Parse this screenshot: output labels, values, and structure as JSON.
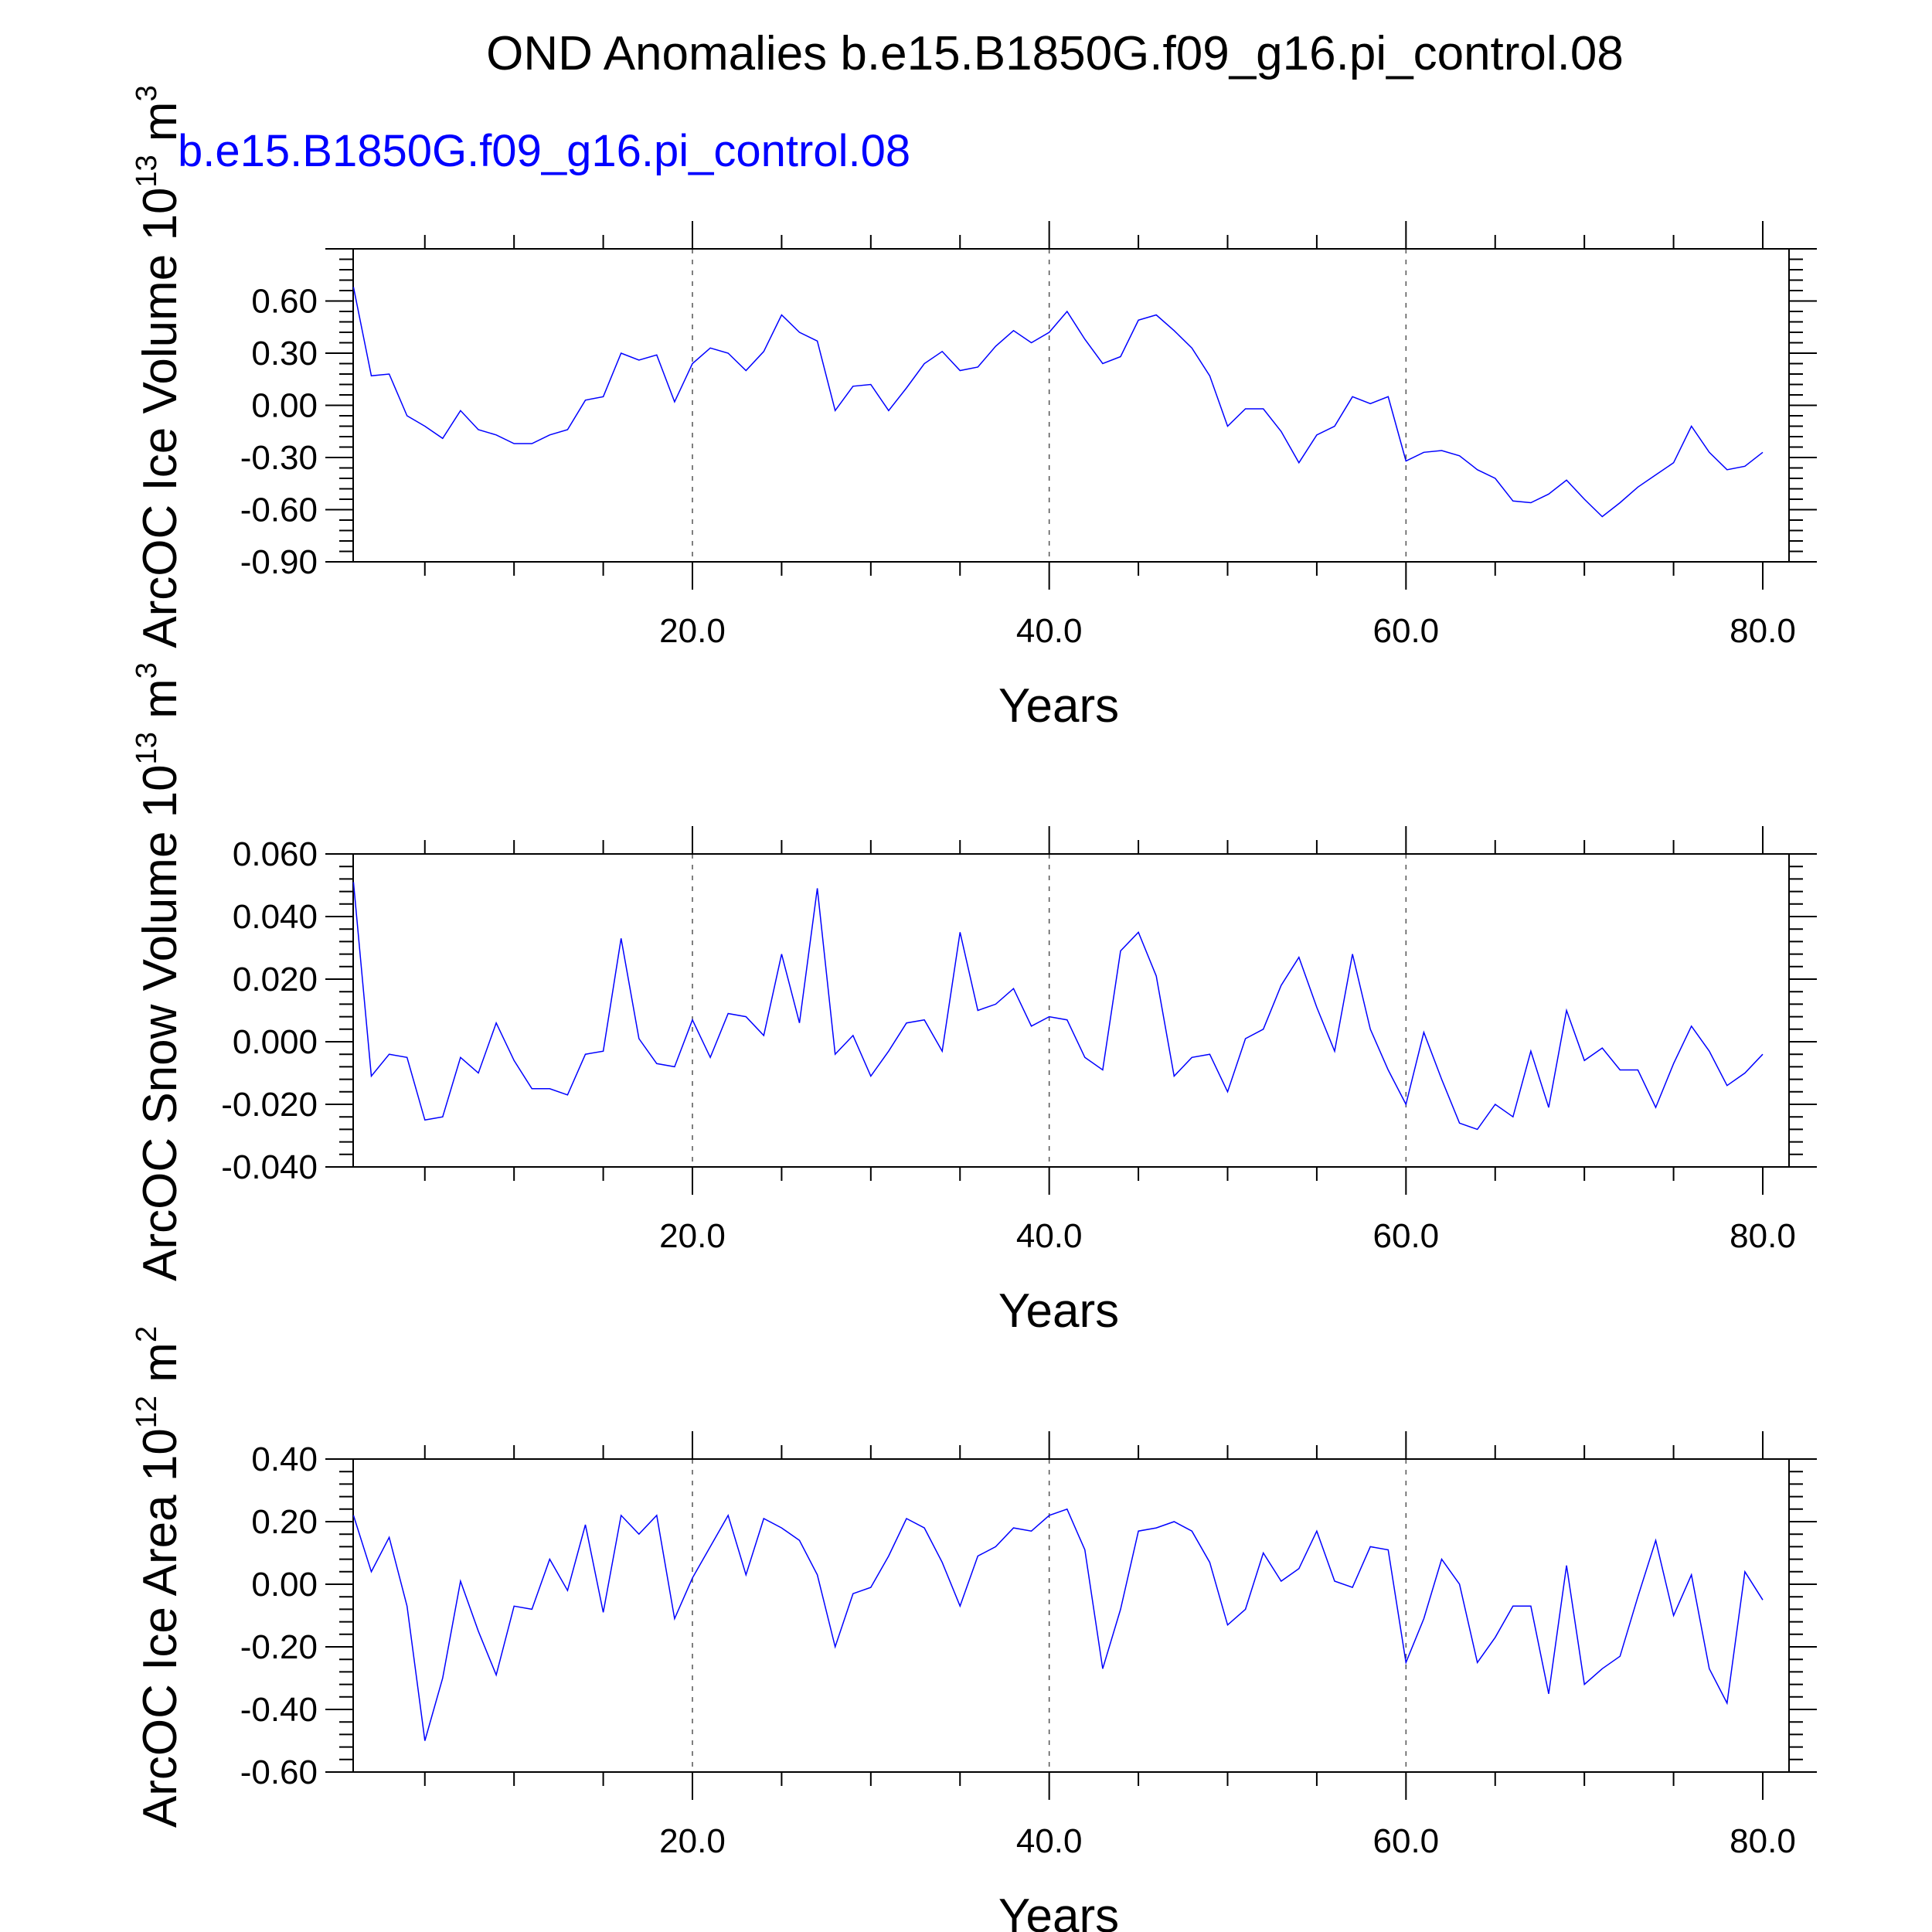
{
  "title": "OND Anomalies b.e15.B1850G.f09_g16.pi_control.08",
  "case_label": "b.e15.B1850G.f09_g16.pi_control.08",
  "chart_data": [
    {
      "type": "line",
      "ylabel": {
        "text": "ArcOC Ice Volume 10",
        "exp": "13",
        "unit": " m",
        "unit_exp": "3"
      },
      "xlabel": "Years",
      "xlim": [
        1,
        80.0
      ],
      "ylim": [
        -0.9,
        0.9
      ],
      "ytick_values": [
        -0.9,
        -0.6,
        -0.3,
        0.0,
        0.3,
        0.6
      ],
      "yticks": [
        "-0.90",
        "-0.60",
        "-0.30",
        "0.00",
        "0.30",
        "0.60"
      ],
      "xtick_values": [
        20,
        40,
        60,
        80
      ],
      "xticks": [
        "20.0",
        "40.0",
        "60.0",
        "80.0"
      ],
      "grid_x": [
        20,
        40,
        60
      ],
      "line_color": "#0000ff",
      "series": [
        {
          "x": [
            1,
            2,
            3,
            4,
            5,
            6,
            7,
            8,
            9,
            10,
            11,
            12,
            13,
            14,
            15,
            16,
            17,
            18,
            19,
            20,
            21,
            22,
            23,
            24,
            25,
            26,
            27,
            28,
            29,
            30,
            31,
            32,
            33,
            34,
            35,
            36,
            37,
            38,
            39,
            40,
            41,
            42,
            43,
            44,
            45,
            46,
            47,
            48,
            49,
            50,
            51,
            52,
            53,
            54,
            55,
            56,
            57,
            58,
            59,
            60,
            61,
            62,
            63,
            64,
            65,
            66,
            67,
            68,
            69,
            70,
            71,
            72,
            73,
            74,
            75,
            76,
            77,
            78,
            79,
            80
          ],
          "values": [
            0.68,
            0.17,
            0.18,
            -0.06,
            -0.12,
            -0.19,
            -0.03,
            -0.14,
            -0.17,
            -0.22,
            -0.22,
            -0.17,
            -0.14,
            0.03,
            0.05,
            0.3,
            0.26,
            0.29,
            0.02,
            0.24,
            0.33,
            0.3,
            0.2,
            0.31,
            0.52,
            0.42,
            0.37,
            -0.03,
            0.11,
            0.12,
            -0.03,
            0.1,
            0.24,
            0.31,
            0.2,
            0.22,
            0.34,
            0.43,
            0.36,
            0.42,
            0.54,
            0.38,
            0.24,
            0.28,
            0.49,
            0.52,
            0.43,
            0.33,
            0.17,
            -0.12,
            -0.02,
            -0.02,
            -0.15,
            -0.33,
            -0.17,
            -0.12,
            0.05,
            0.01,
            0.05,
            -0.32,
            -0.27,
            -0.26,
            -0.29,
            -0.37,
            -0.42,
            -0.55,
            -0.56,
            -0.51,
            -0.43,
            -0.54,
            -0.64,
            -0.56,
            -0.47,
            -0.4,
            -0.33,
            -0.12,
            -0.27,
            -0.37,
            -0.35,
            -0.27
          ]
        }
      ]
    },
    {
      "type": "line",
      "ylabel": {
        "text": "ArcOC Snow Volume 10",
        "exp": "13",
        "unit": " m",
        "unit_exp": "3"
      },
      "xlabel": "Years",
      "xlim": [
        1,
        80.0
      ],
      "ylim": [
        -0.04,
        0.06
      ],
      "ytick_values": [
        -0.04,
        -0.02,
        0.0,
        0.02,
        0.04,
        0.06
      ],
      "yticks": [
        "-0.040",
        "-0.020",
        "0.000",
        "0.020",
        "0.040",
        "0.060"
      ],
      "xtick_values": [
        20,
        40,
        60,
        80
      ],
      "xticks": [
        "20.0",
        "40.0",
        "60.0",
        "80.0"
      ],
      "grid_x": [
        20,
        40,
        60
      ],
      "line_color": "#0000ff",
      "series": [
        {
          "x": [
            1,
            2,
            3,
            4,
            5,
            6,
            7,
            8,
            9,
            10,
            11,
            12,
            13,
            14,
            15,
            16,
            17,
            18,
            19,
            20,
            21,
            22,
            23,
            24,
            25,
            26,
            27,
            28,
            29,
            30,
            31,
            32,
            33,
            34,
            35,
            36,
            37,
            38,
            39,
            40,
            41,
            42,
            43,
            44,
            45,
            46,
            47,
            48,
            49,
            50,
            51,
            52,
            53,
            54,
            55,
            56,
            57,
            58,
            59,
            60,
            61,
            62,
            63,
            64,
            65,
            66,
            67,
            68,
            69,
            70,
            71,
            72,
            73,
            74,
            75,
            76,
            77,
            78,
            79,
            80
          ],
          "values": [
            0.051,
            -0.011,
            -0.004,
            -0.005,
            -0.025,
            -0.024,
            -0.005,
            -0.01,
            0.006,
            -0.006,
            -0.015,
            -0.015,
            -0.017,
            -0.004,
            -0.003,
            0.033,
            0.001,
            -0.007,
            -0.008,
            0.007,
            -0.005,
            0.009,
            0.008,
            0.002,
            0.028,
            0.006,
            0.049,
            -0.004,
            0.002,
            -0.011,
            -0.003,
            0.006,
            0.007,
            -0.003,
            0.035,
            0.01,
            0.012,
            0.017,
            0.005,
            0.008,
            0.007,
            -0.005,
            -0.009,
            0.029,
            0.035,
            0.021,
            -0.011,
            -0.005,
            -0.004,
            -0.016,
            0.001,
            0.004,
            0.018,
            0.027,
            0.011,
            -0.003,
            0.028,
            0.004,
            -0.009,
            -0.02,
            0.003,
            -0.012,
            -0.026,
            -0.028,
            -0.02,
            -0.024,
            -0.003,
            -0.021,
            0.01,
            -0.006,
            -0.002,
            -0.009,
            -0.009,
            -0.021,
            -0.007,
            0.005,
            -0.003,
            -0.014,
            -0.01,
            -0.004
          ]
        }
      ]
    },
    {
      "type": "line",
      "ylabel": {
        "text": "ArcOC Ice Area 10",
        "exp": "12",
        "unit": " m",
        "unit_exp": "2"
      },
      "xlabel": "Years",
      "xlim": [
        1,
        80.0
      ],
      "ylim": [
        -0.6,
        0.4
      ],
      "ytick_values": [
        -0.6,
        -0.4,
        -0.2,
        0.0,
        0.2,
        0.4
      ],
      "yticks": [
        "-0.60",
        "-0.40",
        "-0.20",
        "0.00",
        "0.20",
        "0.40"
      ],
      "xtick_values": [
        20,
        40,
        60,
        80
      ],
      "xticks": [
        "20.0",
        "40.0",
        "60.0",
        "80.0"
      ],
      "grid_x": [
        20,
        40,
        60
      ],
      "line_color": "#0000ff",
      "series": [
        {
          "x": [
            1,
            2,
            3,
            4,
            5,
            6,
            7,
            8,
            9,
            10,
            11,
            12,
            13,
            14,
            15,
            16,
            17,
            18,
            19,
            20,
            21,
            22,
            23,
            24,
            25,
            26,
            27,
            28,
            29,
            30,
            31,
            32,
            33,
            34,
            35,
            36,
            37,
            38,
            39,
            40,
            41,
            42,
            43,
            44,
            45,
            46,
            47,
            48,
            49,
            50,
            51,
            52,
            53,
            54,
            55,
            56,
            57,
            58,
            59,
            60,
            61,
            62,
            63,
            64,
            65,
            66,
            67,
            68,
            69,
            70,
            71,
            72,
            73,
            74,
            75,
            76,
            77,
            78,
            79,
            80
          ],
          "values": [
            0.22,
            0.04,
            0.15,
            -0.07,
            -0.5,
            -0.3,
            0.01,
            -0.15,
            -0.29,
            -0.07,
            -0.08,
            0.08,
            -0.02,
            0.19,
            -0.09,
            0.22,
            0.16,
            0.22,
            -0.11,
            0.02,
            0.12,
            0.22,
            0.03,
            0.21,
            0.18,
            0.14,
            0.03,
            -0.2,
            -0.03,
            -0.01,
            0.09,
            0.21,
            0.18,
            0.07,
            -0.07,
            0.09,
            0.12,
            0.18,
            0.17,
            0.22,
            0.24,
            0.11,
            -0.27,
            -0.08,
            0.17,
            0.18,
            0.2,
            0.17,
            0.07,
            -0.13,
            -0.08,
            0.1,
            0.01,
            0.05,
            0.17,
            0.01,
            -0.01,
            0.12,
            0.11,
            -0.25,
            -0.11,
            0.08,
            0.0,
            -0.25,
            -0.17,
            -0.07,
            -0.07,
            -0.35,
            0.06,
            -0.32,
            -0.27,
            -0.23,
            -0.04,
            0.14,
            -0.1,
            0.03,
            -0.27,
            -0.38,
            0.04,
            -0.05
          ]
        }
      ]
    }
  ]
}
